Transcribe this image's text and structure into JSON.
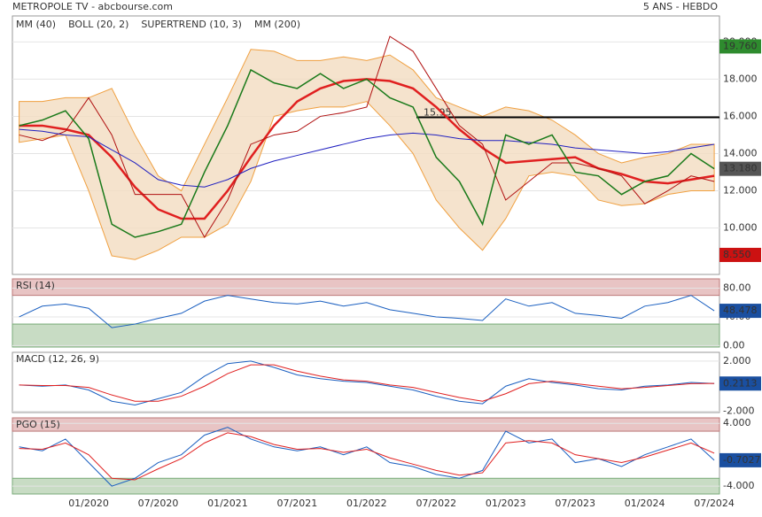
{
  "header": {
    "title": "METROPOLE TV - abcbourse.com",
    "period": "5 ANS - HEBDO"
  },
  "chart_data": [
    {
      "type": "line",
      "panel": "price",
      "categories": [
        null,
        null,
        null,
        "01/2020",
        null,
        null,
        "07/2020",
        null,
        null,
        "01/2021",
        null,
        null,
        "07/2021",
        null,
        null,
        "01/2022",
        null,
        null,
        "07/2022",
        null,
        null,
        "01/2023",
        null,
        null,
        "07/2023",
        null,
        null,
        "01/2024",
        null,
        null,
        "07/2024"
      ],
      "ylim": [
        7.5,
        21.4
      ],
      "yticks": [
        {
          "value": 10,
          "label": "10.000"
        },
        {
          "value": 12,
          "label": "12.000"
        },
        {
          "value": 14,
          "label": "14.000"
        },
        {
          "value": 16,
          "label": "16.000"
        },
        {
          "value": 18,
          "label": "18.000"
        },
        {
          "value": 20,
          "label": "20.000"
        }
      ],
      "band": {
        "name": "BOLL (20, 2)",
        "color": "#f0a040",
        "upper": [
          16.8,
          16.8,
          17.0,
          17.0,
          17.5,
          15.0,
          12.8,
          12.0,
          14.5,
          17.0,
          19.6,
          19.5,
          19.0,
          19.0,
          19.2,
          19.0,
          19.3,
          18.5,
          17.0,
          16.5,
          16.0,
          16.5,
          16.3,
          15.8,
          15.0,
          14.0,
          13.5,
          13.8,
          14.0,
          14.5,
          14.5
        ],
        "lower": [
          14.6,
          14.8,
          15.0,
          12.0,
          8.5,
          8.3,
          8.8,
          9.5,
          9.5,
          10.2,
          12.5,
          16.0,
          16.3,
          16.5,
          16.5,
          16.8,
          15.5,
          14.0,
          11.5,
          10.0,
          8.8,
          10.5,
          12.8,
          13.0,
          12.8,
          11.5,
          11.2,
          11.3,
          11.8,
          12.0,
          12.0
        ]
      },
      "series": [
        {
          "name": "MM (40)",
          "color": "#e02020",
          "width": 2.5,
          "values": [
            15.5,
            15.5,
            15.3,
            15.0,
            13.8,
            12.2,
            11.0,
            10.5,
            10.5,
            12.0,
            13.8,
            15.5,
            16.8,
            17.5,
            17.9,
            18.0,
            17.9,
            17.5,
            16.5,
            15.3,
            14.3,
            13.5,
            13.6,
            13.7,
            13.8,
            13.2,
            12.9,
            12.5,
            12.4,
            12.6,
            12.8
          ]
        },
        {
          "name": "SUPERTREND (10, 3)",
          "color": "#b01010",
          "width": 1,
          "values": [
            15.0,
            14.7,
            15.2,
            17.0,
            15.0,
            11.8,
            11.8,
            11.8,
            9.5,
            11.5,
            14.5,
            15.0,
            15.2,
            16.0,
            16.2,
            16.5,
            20.3,
            19.5,
            17.5,
            15.5,
            14.5,
            11.5,
            12.5,
            13.5,
            13.5,
            13.2,
            12.8,
            11.3,
            12.0,
            12.8,
            12.5
          ]
        },
        {
          "name": "MM (200)",
          "color": "#1f1fc0",
          "width": 1,
          "values": [
            15.3,
            15.2,
            15.0,
            14.9,
            14.2,
            13.5,
            12.6,
            12.3,
            12.2,
            12.6,
            13.2,
            13.6,
            13.9,
            14.2,
            14.5,
            14.8,
            15.0,
            15.1,
            15.0,
            14.8,
            14.7,
            14.7,
            14.6,
            14.5,
            14.3,
            14.2,
            14.1,
            14.0,
            14.1,
            14.3,
            14.5
          ]
        },
        {
          "color": "#1a7a1a",
          "width": 1.5,
          "values": [
            15.5,
            15.8,
            16.3,
            14.8,
            10.2,
            9.5,
            9.8,
            10.2,
            13.0,
            15.5,
            18.5,
            17.8,
            17.5,
            18.3,
            17.5,
            18.0,
            17.0,
            16.5,
            13.8,
            12.5,
            10.2,
            15.0,
            14.5,
            15.0,
            13.0,
            12.8,
            11.8,
            12.5,
            12.8,
            14.0,
            13.18
          ]
        }
      ],
      "level": {
        "value": 15.95,
        "label": "15.95"
      },
      "value_badges": [
        {
          "value": 19.76,
          "label": "19.760",
          "color": "#2e8b2e"
        },
        {
          "value": 13.18,
          "label": "13.180",
          "color": "#555555"
        },
        {
          "value": 8.55,
          "label": "8.550",
          "color": "#cc1111"
        }
      ]
    },
    {
      "type": "line",
      "panel": "RSI (14)",
      "ylim": [
        -2,
        93
      ],
      "yticks": [
        {
          "value": 80,
          "label": "80.00"
        },
        {
          "value": 40,
          "label": "40.00"
        },
        {
          "value": 0,
          "label": "0.00"
        }
      ],
      "zones": {
        "upper": 70,
        "lower": 30
      },
      "series": [
        {
          "color": "#1a5fc0",
          "values": [
            40,
            55,
            58,
            52,
            25,
            30,
            38,
            45,
            62,
            70,
            65,
            60,
            58,
            62,
            55,
            60,
            50,
            45,
            40,
            38,
            35,
            65,
            55,
            60,
            45,
            42,
            38,
            55,
            60,
            70,
            48.478
          ]
        }
      ],
      "value_badges": [
        {
          "value": 48.478,
          "label": "48.478",
          "color": "#1a4fa0"
        }
      ]
    },
    {
      "type": "line",
      "panel": "MACD (12, 26, 9)",
      "ylim": [
        -2.1,
        2.7
      ],
      "yticks": [
        {
          "value": 2,
          "label": "2.000"
        },
        {
          "value": -2,
          "label": "-2.000"
        }
      ],
      "series": [
        {
          "color": "#1a5fc0",
          "values": [
            0.1,
            0,
            0.1,
            -0.3,
            -1.2,
            -1.5,
            -1.0,
            -0.5,
            0.8,
            1.8,
            2.0,
            1.5,
            0.9,
            0.6,
            0.4,
            0.3,
            0,
            -0.3,
            -0.8,
            -1.2,
            -1.4,
            0,
            0.6,
            0.3,
            0.1,
            -0.2,
            -0.3,
            0,
            0.1,
            0.3,
            0.2113
          ]
        },
        {
          "color": "#e02020",
          "values": [
            0.1,
            0.05,
            0.05,
            -0.1,
            -0.7,
            -1.2,
            -1.2,
            -0.8,
            0,
            1.0,
            1.7,
            1.7,
            1.2,
            0.8,
            0.5,
            0.4,
            0.1,
            -0.1,
            -0.5,
            -0.9,
            -1.2,
            -0.6,
            0.2,
            0.4,
            0.2,
            0,
            -0.2,
            -0.1,
            0.05,
            0.2,
            0.22
          ]
        }
      ],
      "value_badges": [
        {
          "value": 0.2113,
          "label": "0.2113",
          "color": "#1a4fa0"
        }
      ]
    },
    {
      "type": "line",
      "panel": "PGO (15)",
      "ylim": [
        -5,
        4.7
      ],
      "yticks": [
        {
          "value": 4,
          "label": "4.000"
        },
        {
          "value": -4,
          "label": "-4.000"
        }
      ],
      "zones": {
        "upper": 3,
        "lower": -3
      },
      "series": [
        {
          "color": "#1a5fc0",
          "values": [
            1,
            0.5,
            2,
            -1,
            -4,
            -3,
            -1,
            0,
            2.5,
            3.5,
            2,
            1,
            0.5,
            1,
            0,
            1,
            -1,
            -1.5,
            -2.5,
            -3,
            -2,
            3,
            1.5,
            2,
            -1,
            -0.5,
            -1.5,
            0,
            1,
            2,
            -0.7027
          ]
        },
        {
          "color": "#e02020",
          "values": [
            0.8,
            0.7,
            1.5,
            0,
            -3,
            -3.2,
            -1.8,
            -0.5,
            1.5,
            2.8,
            2.3,
            1.3,
            0.7,
            0.8,
            0.3,
            0.7,
            -0.4,
            -1.2,
            -2,
            -2.6,
            -2.3,
            1.5,
            1.8,
            1.5,
            0,
            -0.5,
            -1,
            -0.3,
            0.6,
            1.5,
            0.2
          ]
        }
      ],
      "value_badges": [
        {
          "value": -0.7027,
          "label": "-0.7027",
          "color": "#1a4fa0"
        }
      ]
    }
  ]
}
